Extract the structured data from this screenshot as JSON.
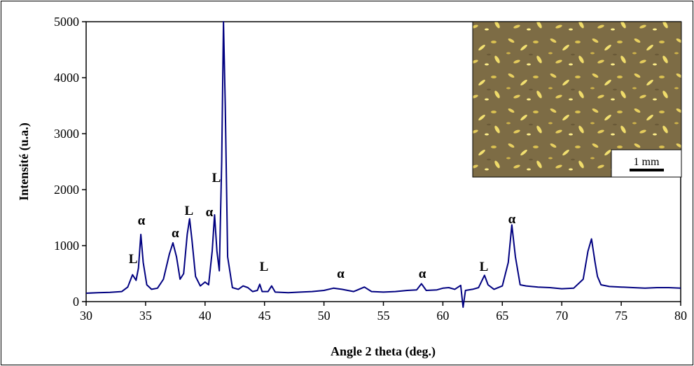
{
  "chart_data": {
    "type": "line",
    "x_label": "Angle 2 theta (deg.)",
    "y_label": "Intensité (u.a.)",
    "xlim": [
      30,
      80
    ],
    "ylim": [
      0,
      5000
    ],
    "xticks": [
      30,
      35,
      40,
      45,
      50,
      55,
      60,
      65,
      70,
      75,
      80
    ],
    "yticks": [
      0,
      1000,
      2000,
      3000,
      4000,
      5000
    ],
    "x": [
      30,
      31,
      32,
      33,
      33.5,
      33.9,
      34.2,
      34.4,
      34.6,
      34.8,
      35.1,
      35.5,
      36,
      36.5,
      37,
      37.3,
      37.6,
      37.9,
      38.2,
      38.5,
      38.7,
      38.9,
      39.2,
      39.6,
      40,
      40.3,
      40.6,
      40.8,
      41,
      41.2,
      41.4,
      41.55,
      41.7,
      41.9,
      42.3,
      42.8,
      43.2,
      43.6,
      44,
      44.4,
      44.6,
      44.8,
      45.3,
      45.6,
      45.9,
      47,
      48,
      49,
      50,
      50.8,
      51.5,
      52.5,
      53.4,
      54,
      55,
      56,
      57,
      57.8,
      58.2,
      58.6,
      59.5,
      60,
      60.5,
      61,
      61.5,
      61.7,
      61.9,
      62.5,
      63,
      63.5,
      63.8,
      64.3,
      65,
      65.5,
      65.8,
      66.1,
      66.5,
      67,
      68,
      69,
      70,
      71,
      71.8,
      72.2,
      72.5,
      72.8,
      73,
      73.3,
      74,
      75,
      76,
      77,
      78,
      79,
      80
    ],
    "series": [
      {
        "color": "#000080",
        "values": [
          150,
          160,
          165,
          180,
          260,
          480,
          380,
          600,
          1200,
          700,
          300,
          220,
          240,
          400,
          850,
          1050,
          800,
          400,
          500,
          1200,
          1480,
          1100,
          450,
          280,
          350,
          300,
          900,
          1550,
          900,
          550,
          2500,
          5000,
          3500,
          800,
          250,
          220,
          280,
          250,
          180,
          200,
          310,
          180,
          180,
          280,
          170,
          160,
          170,
          180,
          200,
          240,
          220,
          180,
          260,
          180,
          170,
          180,
          200,
          210,
          320,
          200,
          210,
          240,
          250,
          220,
          290,
          -100,
          200,
          220,
          250,
          470,
          300,
          220,
          280,
          700,
          1370,
          800,
          300,
          280,
          260,
          250,
          230,
          240,
          400,
          900,
          1120,
          700,
          450,
          300,
          270,
          260,
          250,
          240,
          250,
          250,
          240
        ]
      }
    ],
    "annotations": [
      {
        "text": "L",
        "x": 33.95,
        "y": 775
      },
      {
        "text": "α",
        "x": 34.65,
        "y": 1460
      },
      {
        "text": "α",
        "x": 37.5,
        "y": 1240
      },
      {
        "text": "L",
        "x": 38.65,
        "y": 1640
      },
      {
        "text": "α",
        "x": 40.36,
        "y": 1610
      },
      {
        "text": "L",
        "x": 40.95,
        "y": 2225
      },
      {
        "text": "L",
        "x": 44.96,
        "y": 640
      },
      {
        "text": "α",
        "x": 51.4,
        "y": 510
      },
      {
        "text": "α",
        "x": 58.27,
        "y": 510
      },
      {
        "text": "L",
        "x": 63.45,
        "y": 640
      },
      {
        "text": "α",
        "x": 65.8,
        "y": 1490
      }
    ],
    "inset": {
      "scale_label": "1 mm"
    }
  }
}
